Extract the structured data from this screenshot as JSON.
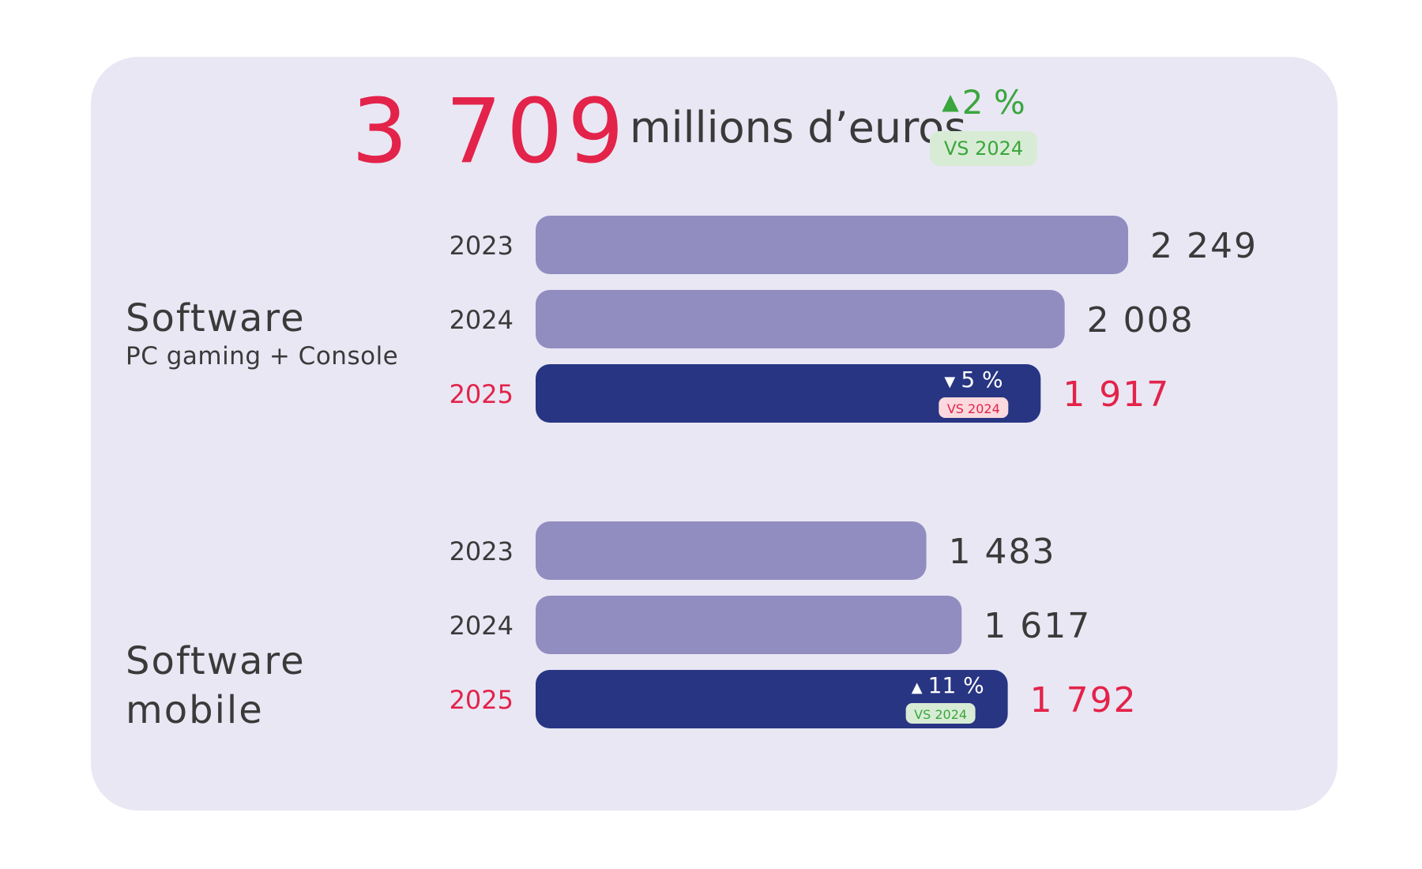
{
  "header": {
    "total_value": "3 709",
    "total_unit": "millions d’euros",
    "change_arrow": "up",
    "change_pct": "2 %",
    "change_label": "VS 2024"
  },
  "colors": {
    "accent_red": "#e3234a",
    "bar_past": "#918dc0",
    "bar_current": "#283583",
    "up_green": "#3aa63d",
    "down_red": "#e3234a",
    "card_bg": "#e9e7f4"
  },
  "chart_data": [
    {
      "type": "bar",
      "orientation": "horizontal",
      "group_title": "Software",
      "group_subtitle": "PC gaming + Console",
      "categories": [
        "2023",
        "2024",
        "2025"
      ],
      "values": [
        2249,
        2008,
        1917
      ],
      "value_labels": [
        "2 249",
        "2 008",
        "1 917"
      ],
      "highlight_index": 2,
      "change": {
        "direction": "down",
        "pct": "5 %",
        "label": "VS 2024"
      }
    },
    {
      "type": "bar",
      "orientation": "horizontal",
      "group_title": "Software\nmobile",
      "group_subtitle": "",
      "categories": [
        "2023",
        "2024",
        "2025"
      ],
      "values": [
        1483,
        1617,
        1792
      ],
      "value_labels": [
        "1 483",
        "1 617",
        "1 792"
      ],
      "highlight_index": 2,
      "change": {
        "direction": "up",
        "pct": "11 %",
        "label": "VS 2024"
      }
    }
  ]
}
